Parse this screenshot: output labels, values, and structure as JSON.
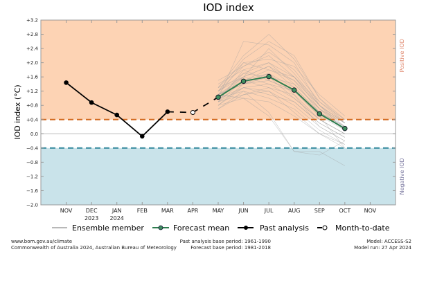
{
  "chart_data": {
    "type": "line",
    "title": "IOD index",
    "ylabel": "IOD index (°C)",
    "ylim": [
      -2.0,
      3.2
    ],
    "yticks": [
      "+3.2",
      "+2.8",
      "+2.4",
      "+2.0",
      "+1.6",
      "+1.2",
      "+0.8",
      "+0.4",
      "0.0",
      "−0.4",
      "−0.8",
      "−1.2",
      "−1.6",
      "−2.0"
    ],
    "ytick_values": [
      3.2,
      2.8,
      2.4,
      2.0,
      1.6,
      1.2,
      0.8,
      0.4,
      0.0,
      -0.4,
      -0.8,
      -1.2,
      -1.6,
      -2.0
    ],
    "categories": [
      "NOV",
      "DEC",
      "JAN",
      "FEB",
      "MAR",
      "APR",
      "MAY",
      "JUN",
      "JUL",
      "AUG",
      "SEP",
      "OCT",
      "NOV"
    ],
    "category_years": [
      "",
      "2023",
      "2024",
      "",
      "",
      "",
      "",
      "",
      "",
      "",
      "",
      "",
      ""
    ],
    "thresholds": {
      "positive": 0.4,
      "negative": -0.4
    },
    "region_labels": {
      "positive": "Positive IOD",
      "negative": "Negative IOD"
    },
    "colors": {
      "positive_fill": "#fdd3b4",
      "negative_fill": "#c9e3ea",
      "positive_line": "#d2691e",
      "negative_line": "#3a8da0",
      "forecast": "#2e7d4f",
      "forecast_marker": "#3f8f5f",
      "ensemble": "#a0a0a0",
      "past": "#000000",
      "positive_label": "#e08a70",
      "negative_label": "#7a78a0"
    },
    "series": [
      {
        "name": "Past analysis",
        "x": [
          "NOV",
          "DEC",
          "JAN",
          "FEB",
          "MAR"
        ],
        "values": [
          1.44,
          0.88,
          0.53,
          -0.07,
          0.62
        ]
      },
      {
        "name": "Month-to-date",
        "x": [
          "MAR",
          "APR",
          "MAY"
        ],
        "values": [
          0.62,
          0.6,
          1.03
        ]
      },
      {
        "name": "Forecast mean",
        "x": [
          "MAY",
          "JUN",
          "JUL",
          "AUG",
          "SEP",
          "OCT"
        ],
        "values": [
          1.03,
          1.48,
          1.61,
          1.23,
          0.56,
          0.15
        ]
      }
    ],
    "ensemble": {
      "name": "Ensemble member",
      "x": [
        "MAY",
        "JUN",
        "JUL",
        "AUG",
        "SEP",
        "OCT"
      ],
      "members": [
        [
          1.1,
          1.6,
          1.9,
          1.5,
          0.8,
          0.3
        ],
        [
          0.9,
          1.3,
          1.4,
          1.0,
          0.4,
          0.0
        ],
        [
          1.3,
          2.2,
          2.8,
          2.1,
          1.0,
          0.4
        ],
        [
          1.0,
          1.5,
          1.7,
          1.3,
          0.6,
          0.2
        ],
        [
          0.8,
          1.0,
          0.9,
          0.5,
          0.0,
          -0.3
        ],
        [
          1.2,
          1.9,
          2.3,
          1.8,
          0.9,
          0.3
        ],
        [
          1.0,
          2.6,
          2.5,
          2.0,
          0.8,
          0.1
        ],
        [
          0.7,
          1.2,
          0.6,
          -0.5,
          -0.6,
          -0.2
        ],
        [
          1.1,
          1.4,
          1.5,
          1.2,
          0.5,
          0.1
        ],
        [
          1.4,
          1.8,
          2.0,
          1.6,
          0.7,
          0.2
        ],
        [
          0.9,
          1.1,
          1.3,
          0.9,
          0.3,
          -0.1
        ],
        [
          1.2,
          1.7,
          1.6,
          1.4,
          0.7,
          0.3
        ],
        [
          1.0,
          1.3,
          1.2,
          0.8,
          0.2,
          -0.2
        ],
        [
          1.3,
          2.0,
          2.1,
          1.9,
          1.1,
          0.5
        ],
        [
          0.8,
          1.4,
          1.7,
          1.1,
          0.4,
          0.0
        ],
        [
          1.1,
          1.5,
          1.8,
          1.5,
          0.6,
          0.1
        ],
        [
          1.0,
          1.2,
          1.0,
          0.7,
          0.1,
          -0.3
        ],
        [
          1.2,
          1.6,
          2.4,
          1.7,
          0.8,
          0.2
        ],
        [
          0.9,
          1.8,
          1.5,
          1.2,
          0.5,
          -0.4
        ],
        [
          1.1,
          1.0,
          0.5,
          -0.5,
          -0.5,
          -0.9
        ],
        [
          1.0,
          1.6,
          1.9,
          1.3,
          0.6,
          0.2
        ],
        [
          1.2,
          2.1,
          2.6,
          2.2,
          1.0,
          0.3
        ],
        [
          0.8,
          1.3,
          1.1,
          0.9,
          0.3,
          -0.1
        ],
        [
          1.1,
          1.4,
          1.6,
          1.0,
          0.4,
          0.0
        ],
        [
          1.5,
          1.9,
          2.2,
          1.6,
          0.9,
          0.4
        ],
        [
          0.9,
          1.5,
          1.3,
          1.1,
          0.2,
          -0.2
        ],
        [
          1.0,
          1.7,
          2.0,
          1.4,
          0.7,
          0.1
        ],
        [
          1.3,
          1.6,
          1.4,
          1.2,
          0.6,
          0.2
        ],
        [
          0.7,
          1.1,
          1.2,
          0.6,
          0.0,
          -0.4
        ],
        [
          1.1,
          2.0,
          1.8,
          1.6,
          0.8,
          0.3
        ]
      ]
    },
    "legend": {
      "placement": "bottom",
      "entries": [
        "Ensemble member",
        "Forecast mean",
        "Past analysis",
        "Month-to-date"
      ]
    }
  },
  "footer": {
    "left_line1": "www.bom.gov.au/climate",
    "left_line2": "Commonwealth of Australia 2024, Australian Bureau of Meteorology",
    "mid_line1": "Past analysis base period: 1961-1990",
    "mid_line2": "Forecast base period: 1981-2018",
    "right_line1": "Model: ACCESS-S2",
    "right_line2": "Model run: 27 Apr 2024"
  }
}
